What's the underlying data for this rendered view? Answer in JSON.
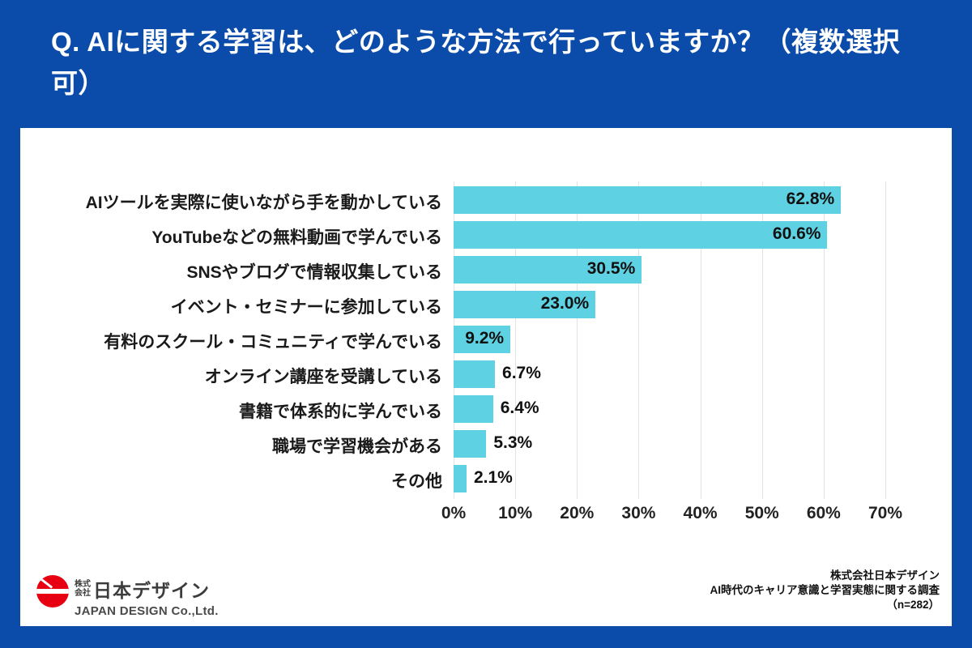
{
  "page": {
    "background_color": "#0b4caa",
    "card_color": "#ffffff"
  },
  "title": {
    "text": "Q. AIに関する学習は、どのような方法で行っていますか？（複数選択可）"
  },
  "chart_data": {
    "type": "bar",
    "orientation": "horizontal",
    "title": "",
    "xlabel": "",
    "ylabel": "",
    "xlim": [
      0,
      70
    ],
    "grid": true,
    "gridline_color": "#e3e3e3",
    "bar_color": "#5ed1e2",
    "categories": [
      "AIツールを実際に使いながら手を動かしている",
      "YouTubeなどの無料動画で学んでいる",
      "SNSやブログで情報収集している",
      "イベント・セミナーに参加している",
      "有料のスクール・コミュニティで学んでいる",
      "オンライン講座を受講している",
      "書籍で体系的に学んでいる",
      "職場で学習機会がある",
      "その他"
    ],
    "values": [
      62.8,
      60.6,
      30.5,
      23.0,
      9.2,
      6.7,
      6.4,
      5.3,
      2.1
    ],
    "value_labels": [
      "62.8%",
      "60.6%",
      "30.5%",
      "23.0%",
      "9.2%",
      "6.7%",
      "6.4%",
      "5.3%",
      "2.1%"
    ],
    "x_ticks": [
      0,
      10,
      20,
      30,
      40,
      50,
      60,
      70
    ],
    "x_tick_labels": [
      "0%",
      "10%",
      "20%",
      "30%",
      "40%",
      "50%",
      "60%",
      "70%"
    ]
  },
  "footer": {
    "logo": {
      "prefix_line1": "株式",
      "prefix_line2": "会社",
      "company_jp": "日本デザイン",
      "company_en": "JAPAN DESIGN Co.,Ltd.",
      "mark_color": "#e60012"
    },
    "source_lines": [
      "株式会社日本デザイン",
      "AI時代のキャリア意識と学習実態に関する調査",
      "（n=282）"
    ]
  }
}
